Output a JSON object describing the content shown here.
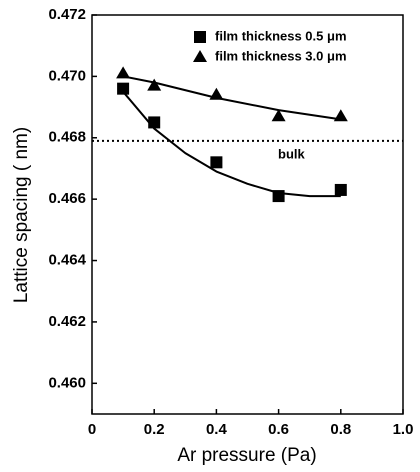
{
  "chart_data": {
    "type": "scatter",
    "x_label": "Ar pressure (Pa)",
    "y_label": "Lattice spacing ( nm)",
    "xlim": [
      0,
      1.0
    ],
    "ylim": [
      0.459,
      0.472
    ],
    "xticks": [
      0,
      0.2,
      0.4,
      0.6,
      0.8,
      {
        "value": 1.0,
        "label": "1.0"
      }
    ],
    "yticks": [
      {
        "value": 0.46,
        "label": "0.460"
      },
      0.462,
      0.464,
      0.466,
      0.468,
      {
        "value": 0.47,
        "label": "0.470"
      },
      0.472
    ],
    "legend": "upper right",
    "series": [
      {
        "name": "film thickness 0.5 μm",
        "marker": "square",
        "color": "#000000",
        "x": [
          0.1,
          0.2,
          0.4,
          0.6,
          0.8
        ],
        "values": [
          0.4696,
          0.4685,
          0.4672,
          0.4661,
          0.4663
        ],
        "fit": {
          "x": [
            0.1,
            0.2,
            0.3,
            0.4,
            0.5,
            0.6,
            0.7,
            0.8
          ],
          "values": [
            0.4695,
            0.4683,
            0.4675,
            0.4669,
            0.4665,
            0.4662,
            0.4661,
            0.4661
          ]
        }
      },
      {
        "name": "film thickness 3.0 μm",
        "marker": "triangle",
        "color": "#000000",
        "x": [
          0.1,
          0.2,
          0.4,
          0.6,
          0.8
        ],
        "values": [
          0.4701,
          0.4697,
          0.4694,
          0.4687,
          0.4687
        ],
        "fit": {
          "x": [
            0.1,
            0.2,
            0.4,
            0.6,
            0.8
          ],
          "values": [
            0.47,
            0.4698,
            0.4693,
            0.4689,
            0.4686
          ]
        }
      }
    ],
    "reference": {
      "label": "bulk",
      "value": 0.4679
    }
  }
}
